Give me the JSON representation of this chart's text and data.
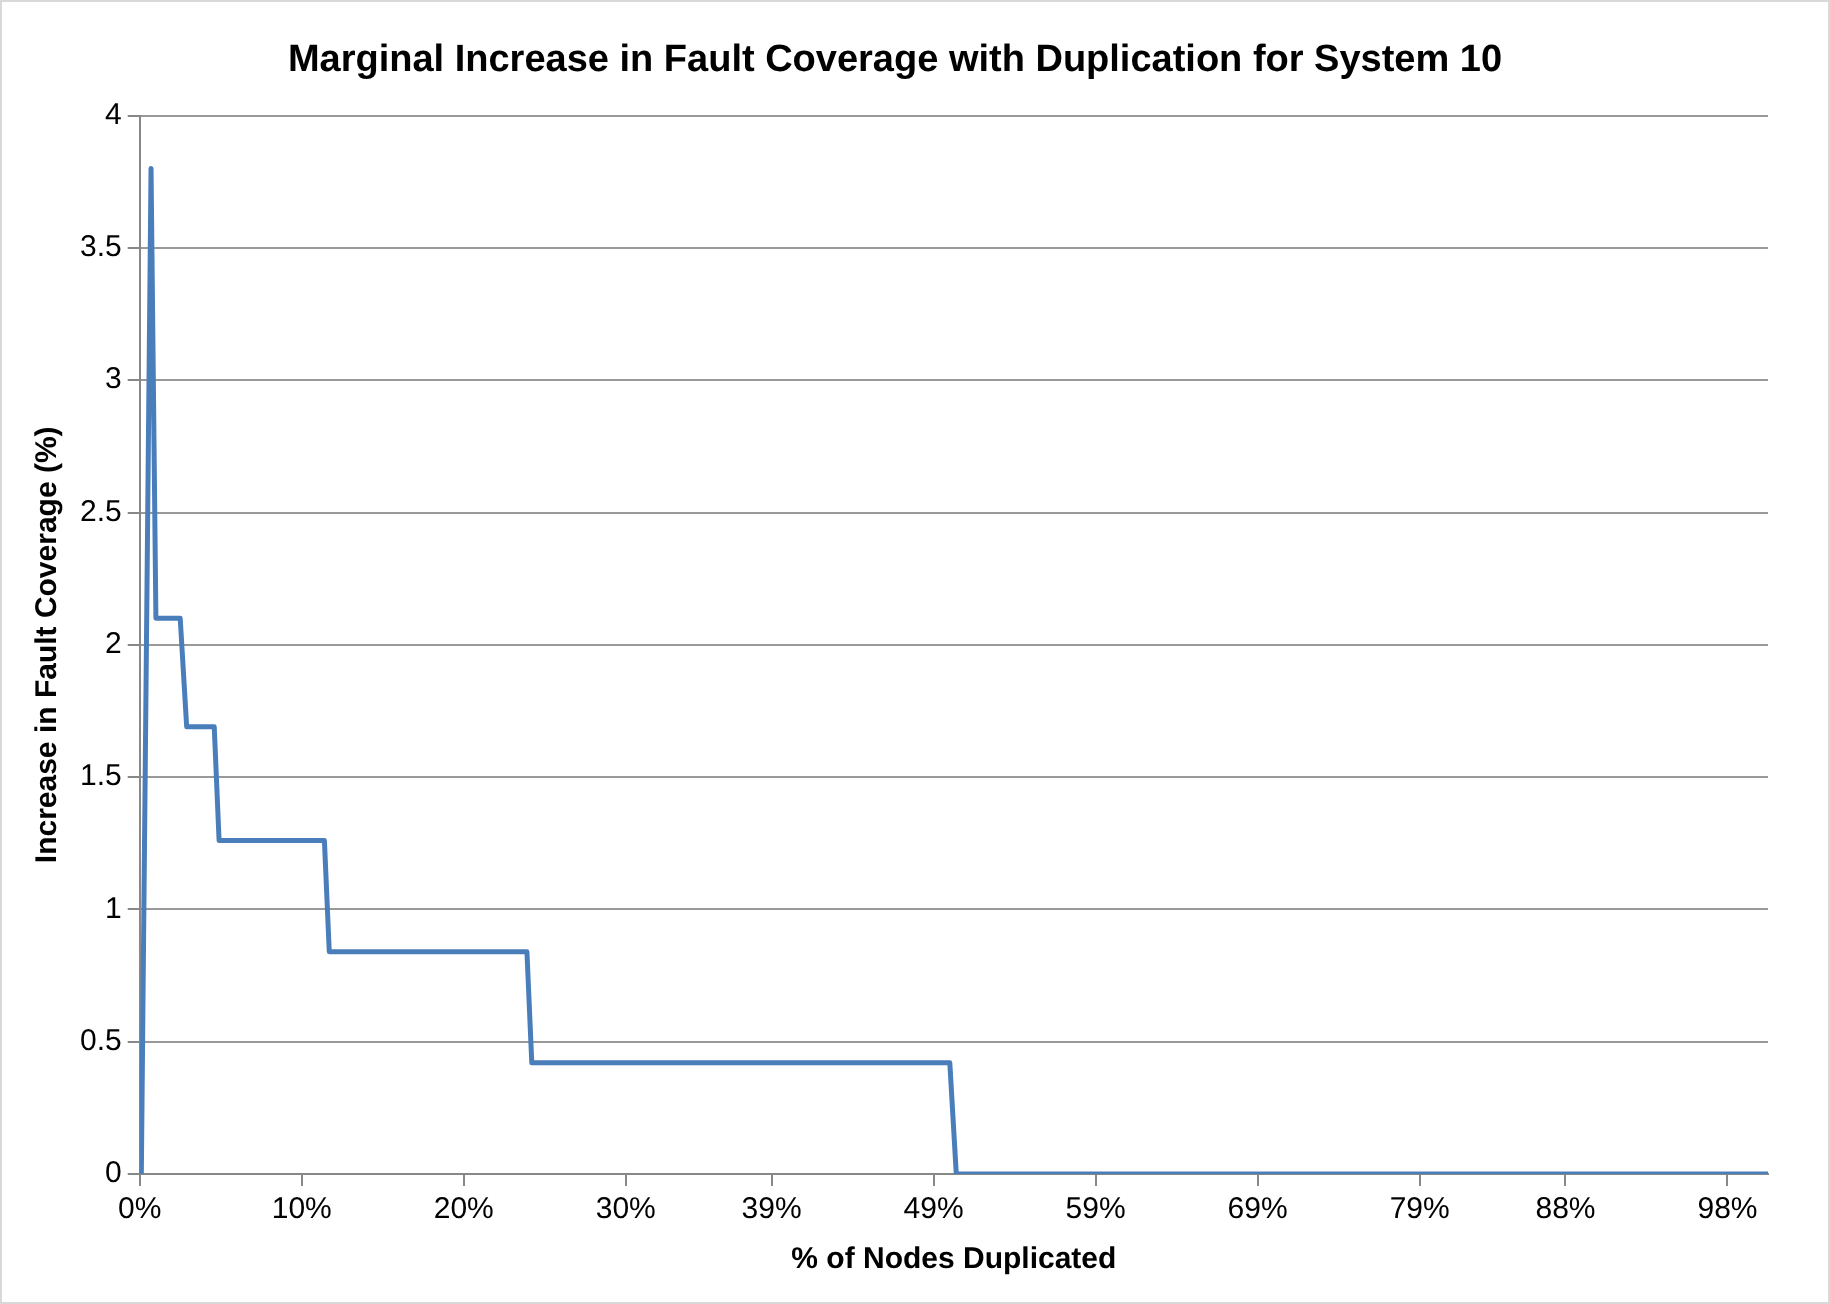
{
  "chart_data": {
    "type": "line",
    "title": "Marginal Increase in Fault Coverage with Duplication for System 10",
    "xlabel": "% of Nodes Duplicated",
    "ylabel": "Increase in Fault Coverage (%)",
    "series": [
      {
        "color": "#4a7ebb",
        "x": [
          0.1,
          0.7,
          1.0,
          2.5,
          2.9,
          4.6,
          4.9,
          11.4,
          11.7,
          23.9,
          24.2,
          50.0,
          50.4,
          100.5
        ],
        "values": [
          0,
          3.8,
          2.1,
          2.1,
          1.69,
          1.69,
          1.26,
          1.26,
          0.84,
          0.84,
          0.42,
          0.42,
          0,
          0
        ]
      }
    ],
    "xlim": [
      0,
      100.5
    ],
    "xticks": [
      {
        "value": 0,
        "label": "0%"
      },
      {
        "value": 10,
        "label": "10%"
      },
      {
        "value": 20,
        "label": "20%"
      },
      {
        "value": 30,
        "label": "30%"
      },
      {
        "value": 39,
        "label": "39%"
      },
      {
        "value": 49,
        "label": "49%"
      },
      {
        "value": 59,
        "label": "59%"
      },
      {
        "value": 69,
        "label": "69%"
      },
      {
        "value": 79,
        "label": "79%"
      },
      {
        "value": 88,
        "label": "88%"
      },
      {
        "value": 98,
        "label": "98%"
      }
    ],
    "ylim": [
      0,
      4
    ],
    "yticks": [
      0,
      0.5,
      1,
      1.5,
      2,
      2.5,
      3,
      3.5,
      4
    ],
    "grid": "y",
    "legend": false,
    "marker": "none",
    "line_style": "solid"
  }
}
